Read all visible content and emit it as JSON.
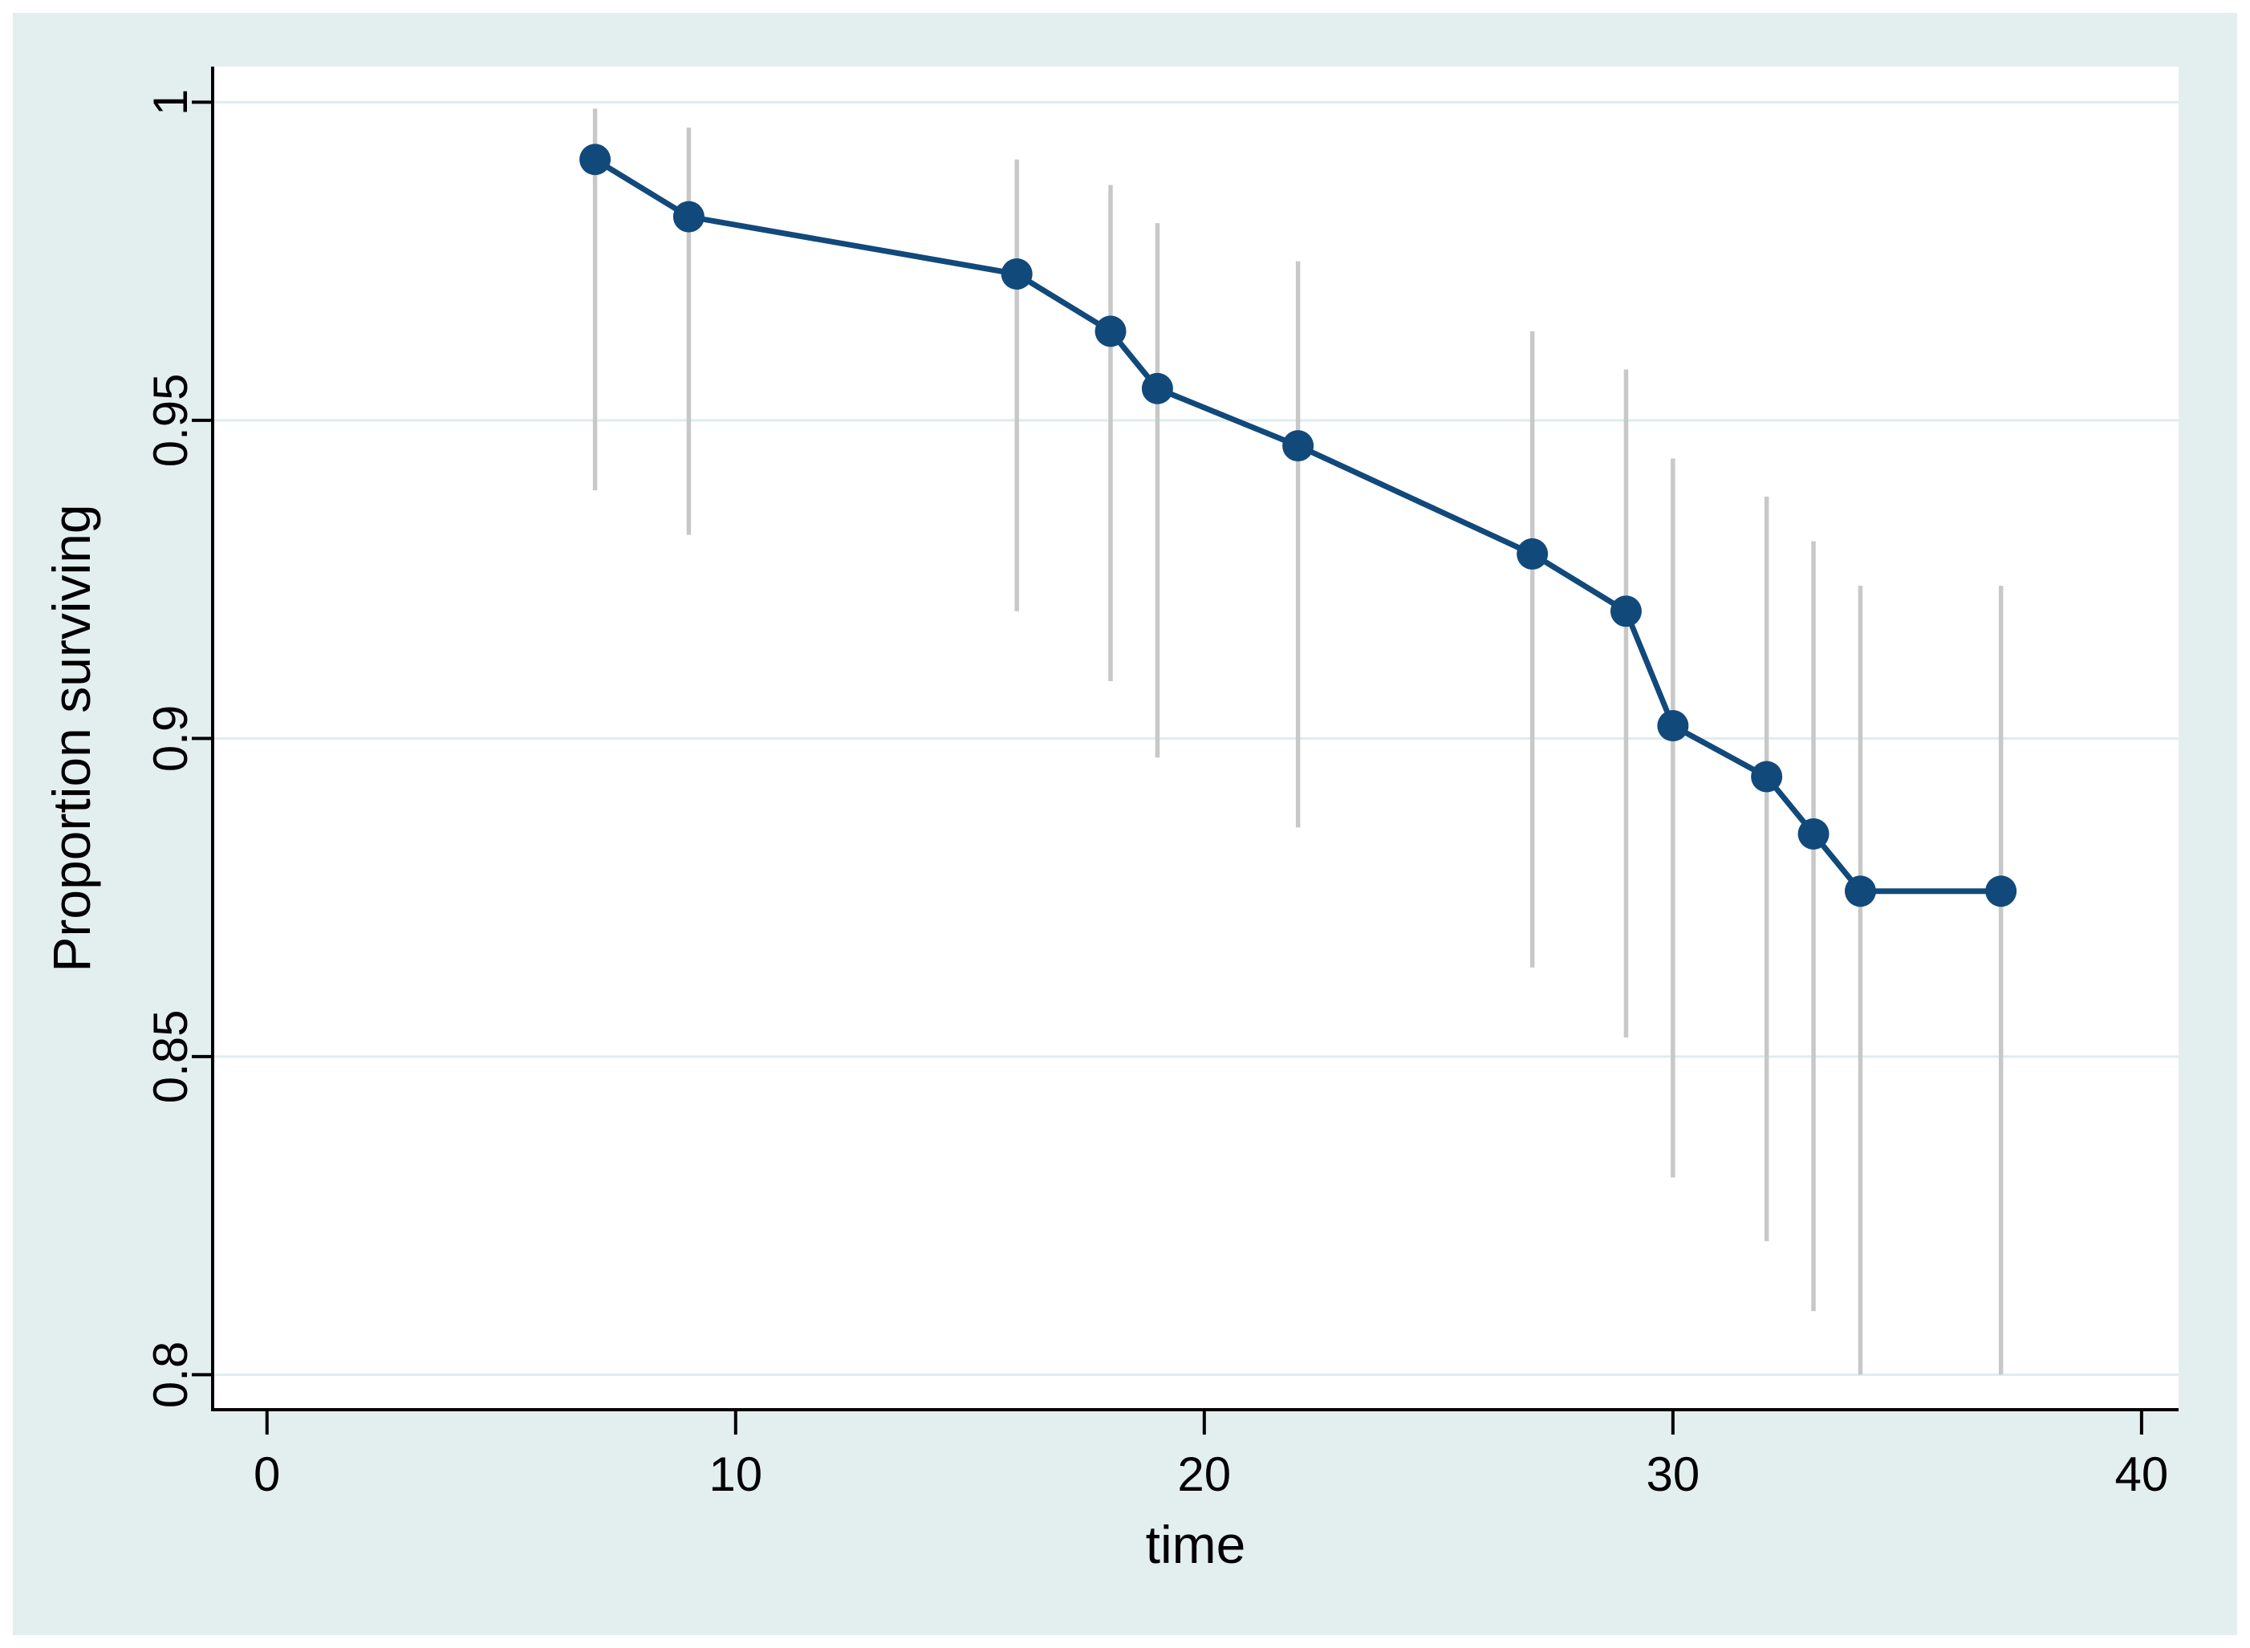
{
  "window": {
    "background": "#ffffff",
    "canvas_color": "#e3eeef",
    "plot_background": "#ffffff"
  },
  "chart_data": {
    "type": "line",
    "title": "",
    "xlabel": "time",
    "ylabel": "Proportion surviving",
    "legend": "none",
    "grid": "horizontal-only",
    "xlim": [
      -1.16,
      40.79
    ],
    "ylim": [
      0.7945,
      1.0056
    ],
    "x_ticks": [
      {
        "value": 0,
        "label": "0"
      },
      {
        "value": 10,
        "label": "10"
      },
      {
        "value": 20,
        "label": "20"
      },
      {
        "value": 30,
        "label": "30"
      },
      {
        "value": 40,
        "label": "40"
      }
    ],
    "y_ticks": [
      {
        "value": 1,
        "label": "1"
      },
      {
        "value": 0.95,
        "label": "0.95"
      },
      {
        "value": 0.9,
        "label": "0.9"
      },
      {
        "value": 0.85,
        "label": "0.85"
      },
      {
        "value": 0.8,
        "label": "0.8"
      }
    ],
    "colors": {
      "line": "#11497b",
      "marker": "#11497b",
      "ci": "#c8c8c8",
      "grid": "#deedef",
      "axis": "#000000"
    },
    "series": [
      {
        "name": "proportion-surviving",
        "marker": "circle",
        "points": [
          {
            "time": 7,
            "surviving": 0.991,
            "ci_lower": 0.939,
            "ci_upper": 0.999
          },
          {
            "time": 9,
            "surviving": 0.982,
            "ci_lower": 0.932,
            "ci_upper": 0.996
          },
          {
            "time": 16,
            "surviving": 0.973,
            "ci_lower": 0.92,
            "ci_upper": 0.991
          },
          {
            "time": 18,
            "surviving": 0.964,
            "ci_lower": 0.909,
            "ci_upper": 0.987
          },
          {
            "time": 19,
            "surviving": 0.955,
            "ci_lower": 0.897,
            "ci_upper": 0.981
          },
          {
            "time": 22,
            "surviving": 0.946,
            "ci_lower": 0.886,
            "ci_upper": 0.975
          },
          {
            "time": 27,
            "surviving": 0.929,
            "ci_lower": 0.864,
            "ci_upper": 0.964
          },
          {
            "time": 29,
            "surviving": 0.92,
            "ci_lower": 0.853,
            "ci_upper": 0.958
          },
          {
            "time": 30,
            "surviving": 0.902,
            "ci_lower": 0.831,
            "ci_upper": 0.944
          },
          {
            "time": 32,
            "surviving": 0.894,
            "ci_lower": 0.821,
            "ci_upper": 0.938
          },
          {
            "time": 33,
            "surviving": 0.885,
            "ci_lower": 0.81,
            "ci_upper": 0.931
          },
          {
            "time": 34,
            "surviving": 0.876,
            "ci_lower": 0.8,
            "ci_upper": 0.924
          },
          {
            "time": 37,
            "surviving": 0.876,
            "ci_lower": 0.8,
            "ci_upper": 0.924
          }
        ]
      }
    ]
  }
}
